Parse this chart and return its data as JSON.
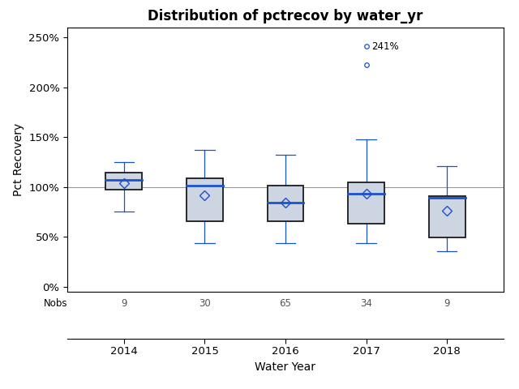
{
  "title": "Distribution of pctrecov by water_yr",
  "xlabel": "Water Year",
  "ylabel": "Pct Recovery",
  "years": [
    2014,
    2015,
    2016,
    2017,
    2018
  ],
  "nobs": [
    9,
    30,
    65,
    34,
    9
  ],
  "box_data": {
    "2014": {
      "q1": 97,
      "median": 107,
      "q3": 114,
      "whisker_low": 75,
      "whisker_high": 125,
      "mean": 104,
      "outliers": []
    },
    "2015": {
      "q1": 66,
      "median": 101,
      "q3": 109,
      "whisker_low": 44,
      "whisker_high": 137,
      "mean": 92,
      "outliers": []
    },
    "2016": {
      "q1": 66,
      "median": 84,
      "q3": 101,
      "whisker_low": 44,
      "whisker_high": 132,
      "mean": 84,
      "outliers": []
    },
    "2017": {
      "q1": 63,
      "median": 93,
      "q3": 105,
      "whisker_low": 44,
      "whisker_high": 148,
      "mean": 93,
      "outliers": [
        241,
        222
      ]
    },
    "2018": {
      "q1": 49,
      "median": 89,
      "q3": 91,
      "whisker_low": 36,
      "whisker_high": 121,
      "mean": 76,
      "outliers": []
    }
  },
  "outlier_label": "241%",
  "outlier_label_year": 2017,
  "reference_line": 100,
  "ylim": [
    -5,
    260
  ],
  "yticks": [
    0,
    50,
    100,
    150,
    200,
    250
  ],
  "ytick_labels": [
    "0%",
    "50%",
    "100%",
    "150%",
    "200%",
    "250%"
  ],
  "box_facecolor": "#cdd5e3",
  "box_edgecolor": "#1a1a1a",
  "median_color": "#1a52cc",
  "whisker_color": "#1a52cc",
  "cap_color": "#1a52cc",
  "mean_marker_color": "#1a52cc",
  "outlier_color": "#1a52cc",
  "ref_line_color": "#999999",
  "background_color": "#ffffff",
  "plot_background": "#ffffff",
  "title_fontsize": 12,
  "label_fontsize": 10,
  "tick_fontsize": 9.5,
  "nobs_fontsize": 8.5,
  "box_width": 0.45
}
